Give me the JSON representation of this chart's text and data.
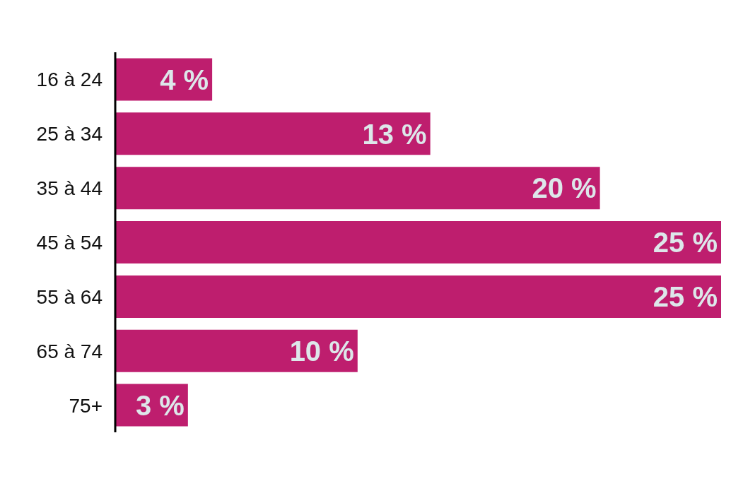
{
  "chart_data": {
    "type": "bar",
    "orientation": "horizontal",
    "categories": [
      "16 à 24",
      "25 à 34",
      "35 à 44",
      "45 à 54",
      "55 à 64",
      "65 à 74",
      "75+"
    ],
    "values": [
      4,
      13,
      20,
      25,
      25,
      10,
      3
    ],
    "value_labels": [
      "4 %",
      "13 %",
      "20 %",
      "25 %",
      "25 %",
      "10 %",
      "3 %"
    ],
    "color": "#be1e6e",
    "tick_labels": "y"
  }
}
